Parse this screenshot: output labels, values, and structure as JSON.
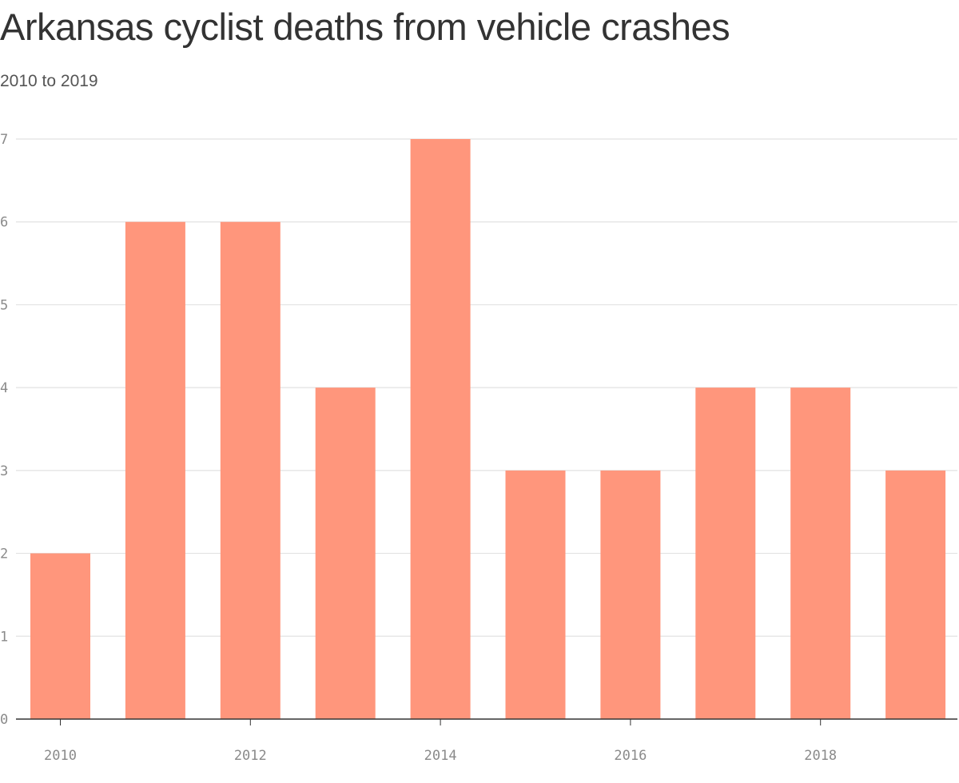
{
  "title": "Arkansas cyclist deaths from vehicle crashes",
  "subtitle": "2010 to 2019",
  "colors": {
    "bar": "#ff967c",
    "grid": "#e2e2e2",
    "baseline": "#333333",
    "tick_text": "#8a8a8a"
  },
  "chart_data": {
    "type": "bar",
    "title": "Arkansas cyclist deaths from vehicle crashes",
    "subtitle": "2010 to 2019",
    "categories": [
      "2010",
      "2011",
      "2012",
      "2013",
      "2014",
      "2015",
      "2016",
      "2017",
      "2018",
      "2019"
    ],
    "values": [
      2,
      6,
      6,
      4,
      7,
      3,
      3,
      4,
      4,
      3
    ],
    "xlabel": "",
    "ylabel": "",
    "ylim": [
      0,
      7
    ],
    "yticks": [
      0,
      1,
      2,
      3,
      4,
      5,
      6,
      7
    ],
    "xtick_labels": [
      "2010",
      "2012",
      "2014",
      "2016",
      "2018"
    ],
    "grid": true,
    "legend": false
  }
}
